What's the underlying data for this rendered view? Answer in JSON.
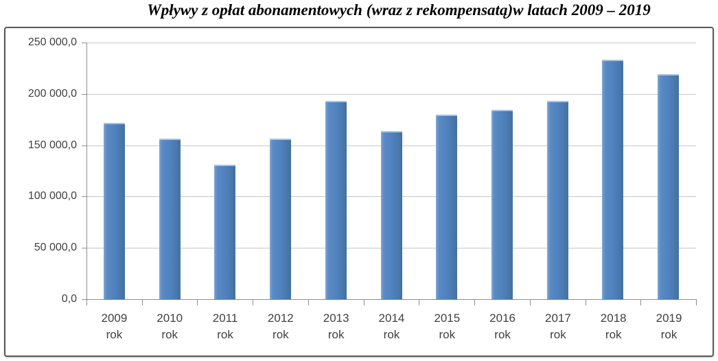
{
  "title": "Wpływy z opłat abonamentowych (wraz z rekompensatą)w latach 2009 – 2019",
  "chart_data": {
    "type": "bar",
    "title": "Wpływy z opłat abonamentowych (wraz z rekompensatą)w latach 2009 – 2019",
    "categories": [
      "2009",
      "2010",
      "2011",
      "2012",
      "2013",
      "2014",
      "2015",
      "2016",
      "2017",
      "2018",
      "2019"
    ],
    "category_suffix": "rok",
    "values": [
      171500,
      156500,
      131000,
      156500,
      193000,
      163500,
      180000,
      184500,
      193000,
      233000,
      219500
    ],
    "xlabel": "",
    "ylabel": "",
    "ylim": [
      0,
      250000
    ],
    "ytick_step": 50000,
    "ytick_labels_top_to_bottom": [
      "250 000,0",
      "200 000,0",
      "150 000,0",
      "100 000,0",
      "50 000,0",
      "0,0"
    ],
    "grid": true,
    "legend": "none",
    "colors": {
      "bar_fill": "#4f81bd",
      "bar_highlight": "#7ea7d5",
      "bar_shadow": "#44719f",
      "gridline": "#c6c6c6",
      "axis_line": "#8e8e8e",
      "tick_text": "#3f3f3f",
      "chart_border": "#585858",
      "background": "#ffffff"
    }
  }
}
